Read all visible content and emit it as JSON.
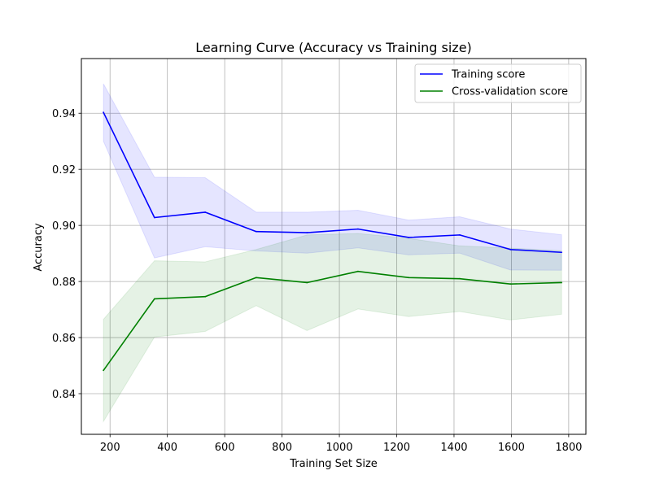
{
  "chart_data": {
    "type": "line",
    "title": "Learning Curve (Accuracy vs Training size)",
    "xlabel": "Training Set Size",
    "ylabel": "Accuracy",
    "xlim": [
      100,
      1860
    ],
    "ylim": [
      0.8255,
      0.9595
    ],
    "x_ticks": [
      200,
      400,
      600,
      800,
      1000,
      1200,
      1400,
      1600,
      1800
    ],
    "y_ticks": [
      0.84,
      0.86,
      0.88,
      0.9,
      0.92,
      0.94
    ],
    "grid": true,
    "legend_position": "top-right",
    "x": [
      177,
      355,
      532,
      710,
      887,
      1065,
      1242,
      1420,
      1597,
      1775
    ],
    "series": [
      {
        "name": "Training score",
        "color": "#0000ff",
        "band_color": "#0000ff",
        "values": [
          0.9403,
          0.9028,
          0.9047,
          0.8978,
          0.8974,
          0.8987,
          0.8957,
          0.8966,
          0.8914,
          0.8904
        ],
        "upper": [
          0.9505,
          0.9172,
          0.917,
          0.9047,
          0.9047,
          0.9054,
          0.9019,
          0.9031,
          0.8987,
          0.8967
        ],
        "lower": [
          0.93,
          0.8884,
          0.8924,
          0.8909,
          0.8901,
          0.892,
          0.8895,
          0.8901,
          0.8841,
          0.884
        ]
      },
      {
        "name": "Cross-validation score",
        "color": "#008000",
        "band_color": "#008000",
        "values": [
          0.8483,
          0.8738,
          0.8746,
          0.8814,
          0.8796,
          0.8836,
          0.8814,
          0.881,
          0.8791,
          0.8796
        ],
        "upper": [
          0.8665,
          0.8874,
          0.887,
          0.8914,
          0.8966,
          0.8971,
          0.8954,
          0.8927,
          0.8919,
          0.891
        ],
        "lower": [
          0.8301,
          0.8602,
          0.8622,
          0.8714,
          0.8625,
          0.8702,
          0.8675,
          0.8693,
          0.8663,
          0.8683
        ]
      }
    ]
  }
}
